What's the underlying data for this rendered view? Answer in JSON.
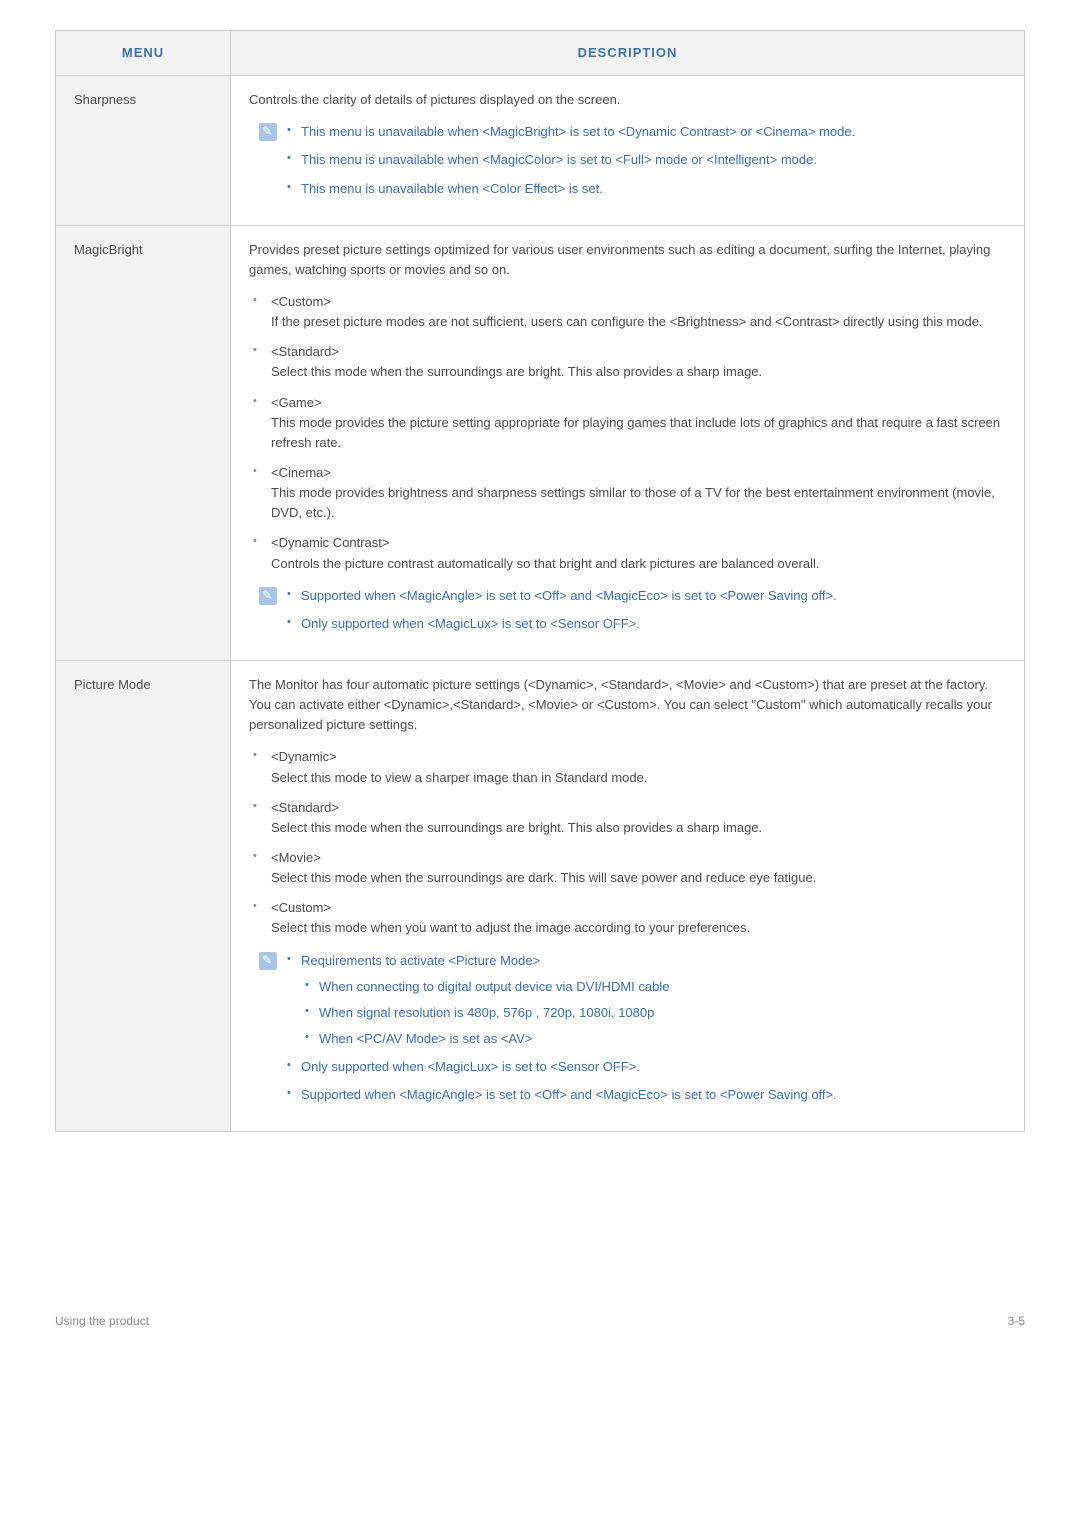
{
  "colors": {
    "text": "#4c4c4c",
    "accent": "#3a6fb7",
    "border": "#c9ccce",
    "header_bg": "#f3f3f3",
    "menu_bg": "#f1f1f1",
    "note_icon_bg": "#a8c4e6",
    "footer_text": "#8a8a8a"
  },
  "header": {
    "menu": "MENU",
    "description": "DESCRIPTION"
  },
  "rows": {
    "sharpness": {
      "title": "Sharpness",
      "intro": "Controls the clarity of details of pictures displayed on the screen.",
      "notes": [
        "This menu is unavailable when <MagicBright> is set to <Dynamic Contrast> or <Cinema> mode.",
        "This menu is unavailable when <MagicColor> is set to <Full> mode or <Intelligent> mode.",
        "This menu is unavailable when <Color Effect> is set."
      ]
    },
    "magicbright": {
      "title": "MagicBright",
      "intro": "Provides preset picture settings optimized for various user environments such as editing a document, surfing the Internet, playing games, watching sports or movies and so on.",
      "items": [
        {
          "label": "<Custom>",
          "desc": "If the preset picture modes are not sufficient, users can configure the <Brightness> and <Contrast> directly using this mode."
        },
        {
          "label": "<Standard>",
          "desc": "Select this mode when the surroundings are bright. This also provides a sharp image."
        },
        {
          "label": "<Game>",
          "desc": "This mode provides the picture setting appropriate for playing games that include lots of graphics and that require a fast screen refresh rate."
        },
        {
          "label": "<Cinema>",
          "desc": "This mode provides brightness and sharpness settings similar to those of a TV for the best entertainment environment (movie, DVD, etc.)."
        },
        {
          "label": "<Dynamic Contrast>",
          "desc": "Controls the picture contrast automatically so that bright and dark pictures are balanced overall."
        }
      ],
      "notes": [
        "Supported when <MagicAngle> is set to <Off> and <MagicEco> is set to <Power Saving off>.",
        "Only supported when <MagicLux> is set to <Sensor OFF>."
      ]
    },
    "picturemode": {
      "title": "Picture Mode",
      "intro": "The Monitor has four automatic picture settings (<Dynamic>, <Standard>, <Movie> and <Custom>) that are preset at the factory. You can activate either <Dynamic>,<Standard>, <Movie> or <Custom>. You can select \"Custom\" which automatically recalls your personalized picture settings.",
      "items": [
        {
          "label": "<Dynamic>",
          "desc": "Select this mode to view a sharper image than in Standard mode."
        },
        {
          "label": "<Standard>",
          "desc": "Select this mode when the surroundings are bright. This also provides a sharp image."
        },
        {
          "label": "<Movie>",
          "desc": "Select this mode when the surroundings are dark. This will save power and reduce eye fatigue."
        },
        {
          "label": "<Custom>",
          "desc": "Select this mode when you want to adjust the image according to your preferences."
        }
      ],
      "notes_header": "Requirements to activate <Picture Mode>",
      "notes_sub": [
        "When connecting to digital output device via DVI/HDMI cable",
        "When signal resolution is 480p, 576p , 720p, 1080i, 1080p",
        "When <PC/AV Mode> is set as <AV>"
      ],
      "notes_after": [
        "Only supported when <MagicLux> is set to <Sensor OFF>.",
        "Supported when <MagicAngle> is set to <Off> and <MagicEco> is set to <Power Saving off>."
      ]
    }
  },
  "footer": {
    "left": "Using the product",
    "right": "3-5"
  }
}
